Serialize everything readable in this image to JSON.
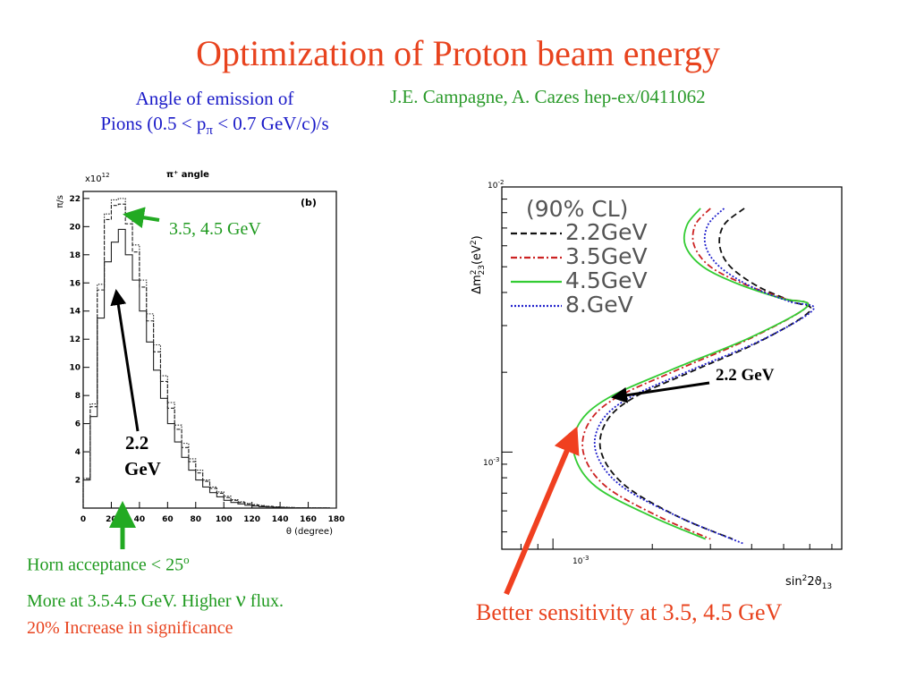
{
  "slide": {
    "title": "Optimization of Proton beam energy",
    "emission_line1": "Angle of emission of",
    "emission_line2_pre": "Pions (0.5 < p",
    "emission_line2_sub": "π",
    "emission_line2_post": " < 0.7 GeV/c)/s",
    "authors": "J.E. Campagne, A. Cazes hep-ex/0411062",
    "horn_pre": "Horn acceptance < 25",
    "horn_sup": "o",
    "more_pre": "More at 3.5.4.5 GeV. Higher ",
    "more_nu": "ν",
    "more_post": " flux.",
    "increase": "20% Increase in significance",
    "better": "Better sensitivity at 3.5, 4.5 GeV",
    "colors": {
      "title": "#e8431e",
      "blue_text": "#1a1ac8",
      "green_text": "#1f9a1f",
      "arrow_green": "#22aa22",
      "arrow_red": "#f04020"
    }
  },
  "chart_data": [
    {
      "type": "line",
      "panel_title": "π⁺ angle",
      "panel_tag": "(b)",
      "y_multiplier": "x10",
      "y_exponent": "12",
      "ylabel": "π/s",
      "xlabel": "θ (degree)",
      "xlim": [
        0,
        180
      ],
      "ylim": [
        0,
        22.5
      ],
      "x_ticks": [
        0,
        20,
        40,
        60,
        80,
        100,
        120,
        140,
        160,
        180
      ],
      "y_ticks": [
        2,
        4,
        6,
        8,
        10,
        12,
        14,
        16,
        18,
        20,
        22
      ],
      "x": [
        0,
        5,
        10,
        15,
        20,
        25,
        30,
        35,
        40,
        45,
        50,
        55,
        60,
        65,
        70,
        75,
        80,
        85,
        90,
        95,
        100,
        105,
        110,
        115,
        120,
        125,
        130,
        135,
        140,
        145,
        150,
        155,
        160,
        165,
        170,
        175,
        180
      ],
      "series": [
        {
          "values": [
            2.0,
            6.5,
            13.5,
            17.5,
            18.9,
            19.8,
            18.0,
            16.2,
            14.0,
            11.8,
            9.8,
            7.8,
            6.0,
            4.7,
            3.6,
            2.7,
            2.0,
            1.5,
            1.1,
            0.8,
            0.55,
            0.4,
            0.3,
            0.2,
            0.15,
            0.1,
            0.08,
            0.06,
            0.04,
            0.03,
            0.02,
            0.02,
            0.01,
            0.01,
            0.01,
            0.0,
            0.0
          ],
          "style": "solid"
        },
        {
          "values": [
            2.1,
            7.2,
            15.5,
            20.5,
            21.5,
            21.6,
            20.2,
            18.2,
            15.7,
            13.3,
            11.1,
            9.0,
            7.1,
            5.6,
            4.3,
            3.3,
            2.5,
            1.9,
            1.4,
            1.05,
            0.75,
            0.55,
            0.4,
            0.3,
            0.22,
            0.16,
            0.12,
            0.08,
            0.06,
            0.04,
            0.03,
            0.02,
            0.01,
            0.01,
            0.01,
            0.0,
            0.0
          ],
          "style": "dashed"
        },
        {
          "values": [
            2.1,
            7.4,
            15.9,
            20.9,
            21.9,
            22.0,
            20.7,
            18.7,
            16.2,
            13.8,
            11.6,
            9.4,
            7.5,
            5.9,
            4.6,
            3.5,
            2.7,
            2.0,
            1.5,
            1.15,
            0.85,
            0.6,
            0.45,
            0.33,
            0.25,
            0.18,
            0.13,
            0.09,
            0.07,
            0.05,
            0.03,
            0.02,
            0.02,
            0.01,
            0.01,
            0.0,
            0.0
          ],
          "style": "dotted"
        }
      ],
      "annotations": [
        "3.5, 4.5 GeV",
        "2.2",
        "GeV"
      ]
    },
    {
      "type": "line",
      "ylabel_main": "Δm",
      "ylabel_sup": "2",
      "ylabel_sub": "23",
      "ylabel_unit": "(eV",
      "ylabel_unit_sup": "2",
      "ylabel_close": ")",
      "xlabel_main": "sin",
      "xlabel_sup": "2",
      "xlabel_mid": "2ϑ",
      "xlabel_sub": "13",
      "x_tick_base": "10",
      "x_tick_exp": "-3",
      "y_tick_labels": [
        {
          "base": "10",
          "exp": "-2"
        },
        {
          "base": "10",
          "exp": "-3"
        }
      ],
      "legend_title": "(90% CL)",
      "legend": "top-left",
      "series": [
        {
          "name": "2.2GeV",
          "color": "#111111",
          "style": "dashed",
          "x": [
            0.0038,
            0.0033,
            0.0032,
            0.00345,
            0.0042,
            0.0053,
            0.006,
            0.0042,
            0.0026,
            0.00175,
            0.00145,
            0.0014,
            0.00165,
            0.0024,
            0.0035
          ],
          "y": [
            0.0083,
            0.0072,
            0.006,
            0.005,
            0.0042,
            0.0037,
            0.0034,
            0.0026,
            0.002,
            0.0016,
            0.0013,
            0.001,
            0.00075,
            0.00057,
            0.00047
          ]
        },
        {
          "name": "3.5GeV",
          "color": "#cc2222",
          "style": "dashdot",
          "x": [
            0.003,
            0.0027,
            0.00268,
            0.003,
            0.0038,
            0.005,
            0.0059,
            0.004,
            0.0024,
            0.00155,
            0.00128,
            0.00124,
            0.00145,
            0.0021,
            0.003
          ],
          "y": [
            0.0083,
            0.0072,
            0.006,
            0.005,
            0.0043,
            0.0038,
            0.00355,
            0.0027,
            0.00205,
            0.0016,
            0.00128,
            0.00098,
            0.00074,
            0.00057,
            0.00047
          ]
        },
        {
          "name": "4.5GeV",
          "color": "#33cc33",
          "style": "solid",
          "x": [
            0.0028,
            0.00255,
            0.00252,
            0.00285,
            0.00365,
            0.0049,
            0.0059,
            0.00395,
            0.0023,
            0.00147,
            0.0012,
            0.00116,
            0.00135,
            0.002,
            0.0029
          ],
          "y": [
            0.0083,
            0.0072,
            0.006,
            0.005,
            0.0043,
            0.0038,
            0.00355,
            0.0027,
            0.00205,
            0.0016,
            0.00128,
            0.00098,
            0.00074,
            0.00057,
            0.00047
          ]
        },
        {
          "name": "8.GeV",
          "color": "#2222cc",
          "style": "dotted",
          "x": [
            0.0033,
            0.00295,
            0.0029,
            0.0032,
            0.004,
            0.0052,
            0.00615,
            0.0043,
            0.0026,
            0.0017,
            0.0014,
            0.00135,
            0.0016,
            0.0024,
            0.0038
          ],
          "y": [
            0.0083,
            0.0072,
            0.006,
            0.005,
            0.0042,
            0.0037,
            0.00345,
            0.00265,
            0.00203,
            0.0016,
            0.0013,
            0.001,
            0.00075,
            0.00057,
            0.00045
          ]
        }
      ],
      "annotations": [
        "2.2 GeV"
      ]
    }
  ]
}
